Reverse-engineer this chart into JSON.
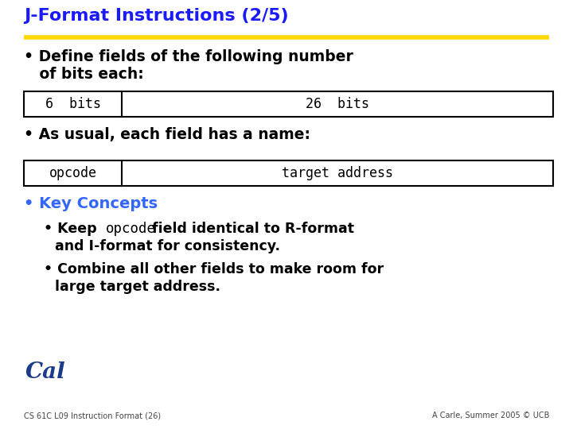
{
  "title": "J-Format Instructions (2/5)",
  "title_color": "#1a1aff",
  "title_underline_color": "#FFD700",
  "bg_color": "#FFFFFF",
  "bullet1_line1": "• Define fields of the following number",
  "bullet1_line2": "   of bits each:",
  "bullet2": "• As usual, each field has a name:",
  "bullet3_title": "• Key Concepts",
  "bullet3_color": "#3366FF",
  "sub_bullet1_line1_parts": [
    "• Keep ",
    "opcode",
    " field identical to R-format"
  ],
  "sub_bullet1_line2": "    and I-format for consistency.",
  "sub_bullet2_line1": "• Combine all other fields to make room for",
  "sub_bullet2_line2": "   large target address.",
  "table1_cell1": "6  bits",
  "table1_cell2": "26  bits",
  "table1_split": 0.185,
  "table2_cell1": "opcode",
  "table2_cell2": "target address",
  "table2_split": 0.185,
  "footer_left": "CS 61C L09 Instruction Format (26)",
  "footer_right": "A Carle, Summer 2005 © UCB",
  "text_color": "#000000",
  "footer_color": "#444444"
}
